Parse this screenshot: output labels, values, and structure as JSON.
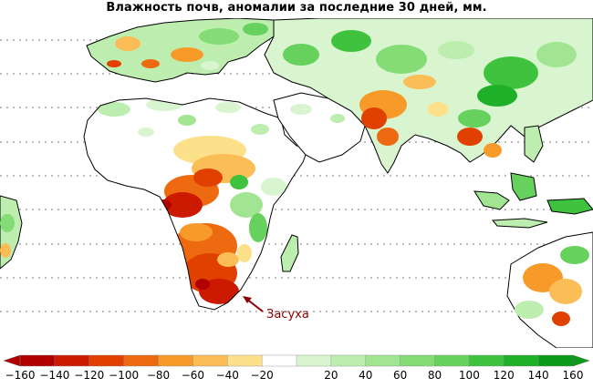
{
  "title": "Влажность почв, аномалии за последние 30 дней, мм.",
  "annotation": "Засуха",
  "palette": {
    "-160": "#b00000",
    "-140": "#cc1a00",
    "-120": "#e04000",
    "-100": "#ee6a10",
    "-80": "#f79a2a",
    "-60": "#fbbd55",
    "-40": "#fde08a",
    "-20": "#ffffff",
    "20": "#d8f5cf",
    "40": "#bdeeb0",
    "60": "#a1e592",
    "80": "#85dc76",
    "100": "#66d15c",
    "120": "#3fc23e",
    "140": "#1fb02a",
    "160": "#0a9a1a",
    "land_base": "#ffffff",
    "coast": "#000000",
    "grid": "#7a7a7a"
  },
  "legend": {
    "ticks": [
      "−160",
      "−140",
      "−120",
      "−100",
      "−80",
      "−60",
      "−40",
      "−20",
      "20",
      "40",
      "60",
      "80",
      "100",
      "120",
      "140",
      "160"
    ],
    "colors": [
      "#b00000",
      "#cc1a00",
      "#e04000",
      "#ee6a10",
      "#f79a2a",
      "#fbbd55",
      "#fde08a",
      "#ffffff",
      "#d8f5cf",
      "#bdeeb0",
      "#a1e592",
      "#85dc76",
      "#66d15c",
      "#3fc23e",
      "#1fb02a",
      "#0a9a1a"
    ]
  }
}
